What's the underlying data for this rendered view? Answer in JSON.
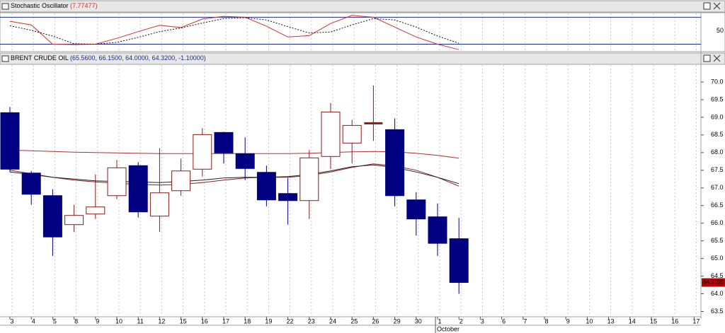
{
  "chart_data": [
    {
      "type": "line",
      "title": "Stochastic Oscillator",
      "subtitle": "(7.77477)",
      "ylim": [
        5,
        90
      ],
      "yticks": [
        50
      ],
      "levels": [
        20,
        80
      ],
      "level_color": "#1c2a8c",
      "series": [
        {
          "color": "#d03030",
          "style": "solid",
          "values": [
            71,
            63,
            20,
            19,
            20,
            33,
            48,
            62,
            57,
            76,
            82,
            80,
            60,
            36,
            39,
            66,
            84,
            80,
            58,
            36,
            20,
            7.77
          ]
        },
        {
          "color": "#111111",
          "style": "dotted",
          "values": [
            61,
            51,
            38,
            21,
            20,
            24,
            35,
            48,
            56,
            67,
            77,
            79,
            74,
            59,
            45,
            47,
            63,
            77,
            74,
            58,
            38,
            22
          ]
        }
      ]
    },
    {
      "type": "candlestick",
      "title": "BRENT CRUDE OIL",
      "subtitle": "(65.5600, 66.1500, 64.0000, 64.3200, -1.10000)",
      "categories": [
        "3",
        "4",
        "5",
        "8",
        "9",
        "10",
        "11",
        "12",
        "15",
        "16",
        "17",
        "18",
        "19",
        "22",
        "23",
        "24",
        "25",
        "26",
        "29",
        "30",
        "1",
        "2",
        "3",
        "6",
        "7",
        "8",
        "9",
        "10",
        "13",
        "14",
        "15",
        "16",
        "17"
      ],
      "month_label": "October",
      "last_price_label": "64.3200",
      "ylim": [
        63.35,
        70.5
      ],
      "yticks": [
        63.5,
        {
          "value": 64,
          "label": "64.0"
        },
        64.5,
        {
          "value": 65,
          "label": "65.0"
        },
        65.5,
        {
          "value": 66,
          "label": "66.0"
        },
        66.5,
        {
          "value": 67,
          "label": "67.0"
        },
        67.5,
        {
          "value": 68,
          "label": "68.0"
        },
        68.5,
        {
          "value": 69,
          "label": "69.0"
        },
        69.5,
        {
          "value": 70,
          "label": "70.0"
        }
      ],
      "grid": "vertical",
      "up_color": "#8b1a1a",
      "down_color": "#000080",
      "open": [
        69.13,
        67.42,
        66.78,
        65.96,
        66.26,
        66.78,
        67.63,
        66.2,
        66.92,
        67.53,
        68.57,
        67.97,
        67.44,
        66.84,
        66.64,
        67.89,
        68.27,
        68.83,
        68.65,
        66.66,
        66.18,
        65.56,
        null,
        null,
        null,
        null,
        null,
        null,
        null,
        null,
        null,
        null,
        null
      ],
      "high": [
        69.29,
        67.48,
        66.96,
        66.52,
        67.38,
        67.79,
        67.73,
        68.13,
        67.83,
        68.69,
        68.59,
        68.43,
        67.63,
        67.28,
        68.07,
        69.4,
        68.93,
        69.9,
        68.97,
        66.88,
        66.56,
        66.15,
        null,
        null,
        null,
        null,
        null,
        null,
        null,
        null,
        null,
        null,
        null
      ],
      "low": [
        67.45,
        66.52,
        65.07,
        65.75,
        66.12,
        66.68,
        66.16,
        65.75,
        66.78,
        67.32,
        67.69,
        67.22,
        66.48,
        65.96,
        66.12,
        67.53,
        67.69,
        68.33,
        66.48,
        65.65,
        65.07,
        64.0,
        null,
        null,
        null,
        null,
        null,
        null,
        null,
        null,
        null,
        null,
        null
      ],
      "close": [
        67.53,
        66.82,
        65.61,
        66.22,
        66.46,
        67.57,
        66.32,
        66.86,
        67.48,
        68.51,
        67.99,
        67.55,
        66.66,
        66.64,
        67.85,
        69.15,
        68.77,
        68.83,
        66.78,
        66.12,
        65.43,
        64.32,
        null,
        null,
        null,
        null,
        null,
        null,
        null,
        null,
        null,
        null,
        null
      ],
      "ma_lines": [
        {
          "color": "#b03030",
          "values": [
            68.07,
            68.05,
            68.03,
            68.01,
            68.0,
            67.99,
            67.98,
            67.97,
            67.97,
            67.97,
            67.97,
            67.97,
            67.97,
            67.97,
            67.98,
            68.0,
            68.02,
            68.03,
            68.02,
            67.98,
            67.92,
            67.84,
            null,
            null,
            null,
            null,
            null,
            null,
            null,
            null,
            null,
            null,
            null
          ]
        },
        {
          "color": "#8b2020",
          "values": [
            67.5,
            67.4,
            67.3,
            67.22,
            67.17,
            67.13,
            67.1,
            67.08,
            67.1,
            67.15,
            67.22,
            67.28,
            67.3,
            67.3,
            67.35,
            67.45,
            67.58,
            67.68,
            67.62,
            67.5,
            67.3,
            67.05,
            null,
            null,
            null,
            null,
            null,
            null,
            null,
            null,
            null,
            null,
            null
          ]
        },
        {
          "color": "#222222",
          "values": [
            67.45,
            67.38,
            67.3,
            67.25,
            67.2,
            67.18,
            67.17,
            67.15,
            67.18,
            67.22,
            67.28,
            67.3,
            67.3,
            67.32,
            67.38,
            67.48,
            67.6,
            67.65,
            67.58,
            67.45,
            67.3,
            67.12,
            null,
            null,
            null,
            null,
            null,
            null,
            null,
            null,
            null,
            null,
            null
          ]
        }
      ]
    }
  ]
}
